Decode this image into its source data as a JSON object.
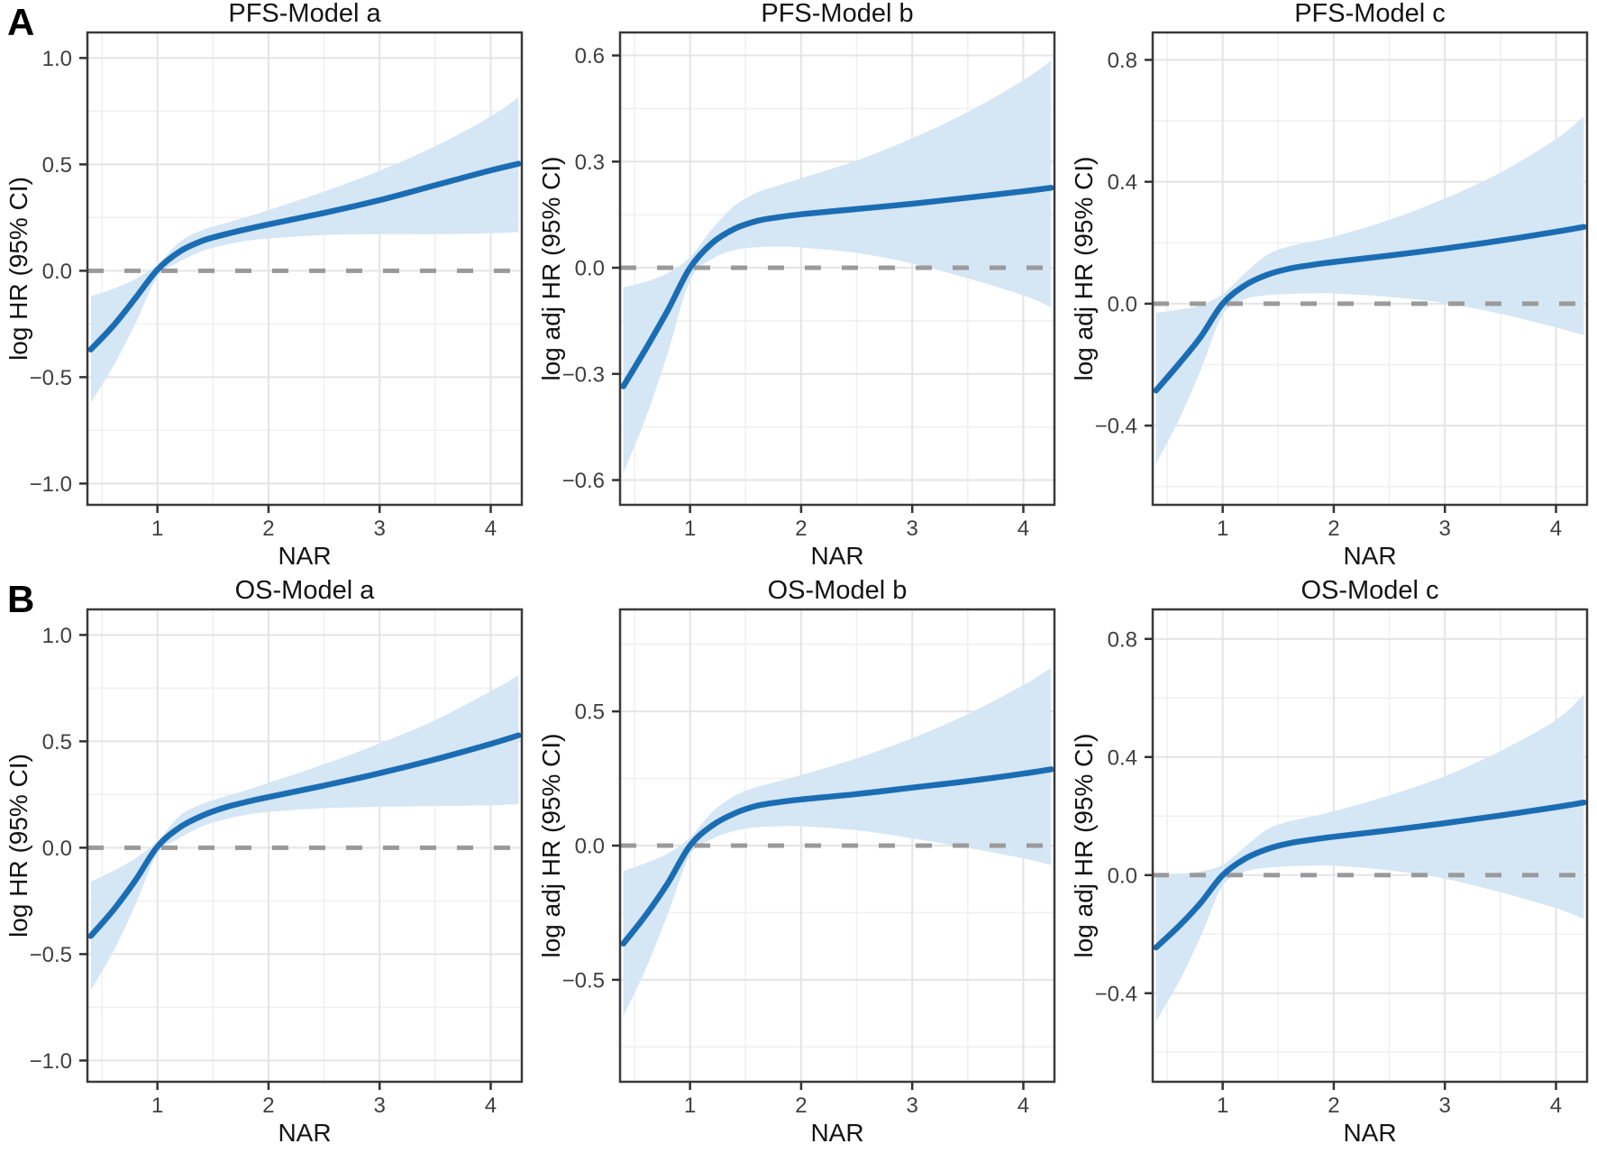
{
  "figure": {
    "row_labels": [
      "A",
      "B"
    ],
    "xlabel": "NAR",
    "colors": {
      "line": "#1b6db3",
      "ribbon": "#d5e6f4",
      "dashed": "#9a9a9a",
      "grid_major": "#e4e4e4",
      "grid_minor": "#f0f0f0",
      "border": "#3a3a3a",
      "tick_mark": "#333333",
      "title_text": "#141414",
      "tick_text": "#404040"
    }
  },
  "chart_data": [
    {
      "id": "pfs-model-a",
      "row": "A",
      "type": "line",
      "title": "PFS-Model a",
      "xlabel": "NAR",
      "ylabel": "log HR (95% CI)",
      "xlim": [
        0.37,
        4.28
      ],
      "ylim": [
        -1.1,
        1.12
      ],
      "xticks": [
        1,
        2,
        3,
        4
      ],
      "xtick_labels": [
        "1",
        "2",
        "3",
        "4"
      ],
      "yticks": [
        {
          "value": 1.0,
          "label": "1.0"
        },
        {
          "value": 0.5,
          "label": "0.5"
        },
        {
          "value": 0.0,
          "label": "0.0"
        },
        {
          "value": -0.5,
          "label": "−0.5"
        },
        {
          "value": -1.0,
          "label": "−1.0"
        }
      ],
      "reference_y": 0,
      "x": [
        0.4,
        0.6,
        0.8,
        1.0,
        1.2,
        1.4,
        1.6,
        1.8,
        2.0,
        2.5,
        3.0,
        3.5,
        4.0,
        4.25
      ],
      "y": [
        -0.37,
        -0.26,
        -0.13,
        0.005,
        0.09,
        0.14,
        0.17,
        0.195,
        0.218,
        0.272,
        0.332,
        0.402,
        0.472,
        0.503
      ],
      "ci_upper": [
        -0.12,
        -0.085,
        -0.04,
        0.03,
        0.135,
        0.19,
        0.222,
        0.252,
        0.285,
        0.372,
        0.47,
        0.585,
        0.725,
        0.815
      ],
      "ci_lower": [
        -0.62,
        -0.45,
        -0.25,
        -0.03,
        0.042,
        0.092,
        0.12,
        0.14,
        0.152,
        0.168,
        0.172,
        0.172,
        0.176,
        0.182
      ]
    },
    {
      "id": "pfs-model-b",
      "row": "A",
      "type": "line",
      "title": "PFS-Model b",
      "xlabel": "NAR",
      "ylabel": "log adj HR (95% CI)",
      "xlim": [
        0.37,
        4.28
      ],
      "ylim": [
        -0.67,
        0.665
      ],
      "xticks": [
        1,
        2,
        3,
        4
      ],
      "xtick_labels": [
        "1",
        "2",
        "3",
        "4"
      ],
      "yticks": [
        {
          "value": 0.6,
          "label": "0.6"
        },
        {
          "value": 0.3,
          "label": "0.3"
        },
        {
          "value": 0.0,
          "label": "0.0"
        },
        {
          "value": -0.3,
          "label": "−0.3"
        },
        {
          "value": -0.6,
          "label": "−0.6"
        }
      ],
      "reference_y": 0,
      "x": [
        0.4,
        0.6,
        0.8,
        1.0,
        1.2,
        1.4,
        1.6,
        1.8,
        2.0,
        2.5,
        3.0,
        3.5,
        4.0,
        4.25
      ],
      "y": [
        -0.335,
        -0.23,
        -0.12,
        0.0,
        0.07,
        0.11,
        0.132,
        0.143,
        0.151,
        0.166,
        0.181,
        0.198,
        0.216,
        0.226
      ],
      "ci_upper": [
        -0.055,
        -0.04,
        -0.015,
        0.03,
        0.11,
        0.175,
        0.212,
        0.233,
        0.253,
        0.303,
        0.366,
        0.44,
        0.53,
        0.585
      ],
      "ci_lower": [
        -0.58,
        -0.425,
        -0.24,
        -0.035,
        0.025,
        0.05,
        0.058,
        0.06,
        0.057,
        0.042,
        0.012,
        -0.03,
        -0.078,
        -0.112
      ]
    },
    {
      "id": "pfs-model-c",
      "row": "A",
      "type": "line",
      "title": "PFS-Model c",
      "xlabel": "NAR",
      "ylabel": "log adj HR (95% CI)",
      "xlim": [
        0.37,
        4.28
      ],
      "ylim": [
        -0.66,
        0.89
      ],
      "xticks": [
        1,
        2,
        3,
        4
      ],
      "xtick_labels": [
        "1",
        "2",
        "3",
        "4"
      ],
      "yticks": [
        {
          "value": 0.8,
          "label": "0.8"
        },
        {
          "value": 0.4,
          "label": "0.4"
        },
        {
          "value": 0.0,
          "label": "0.0"
        },
        {
          "value": -0.4,
          "label": "−0.4"
        }
      ],
      "reference_y": 0,
      "x": [
        0.4,
        0.6,
        0.8,
        1.0,
        1.2,
        1.4,
        1.6,
        1.8,
        2.0,
        2.5,
        3.0,
        3.5,
        4.0,
        4.25
      ],
      "y": [
        -0.285,
        -0.2,
        -0.11,
        0.0,
        0.06,
        0.095,
        0.115,
        0.127,
        0.137,
        0.158,
        0.181,
        0.207,
        0.236,
        0.252
      ],
      "ci_upper": [
        -0.03,
        -0.02,
        -0.005,
        0.032,
        0.1,
        0.16,
        0.188,
        0.204,
        0.22,
        0.275,
        0.345,
        0.43,
        0.54,
        0.615
      ],
      "ci_lower": [
        -0.525,
        -0.385,
        -0.22,
        -0.035,
        0.015,
        0.028,
        0.032,
        0.034,
        0.034,
        0.022,
        0.002,
        -0.033,
        -0.078,
        -0.103
      ]
    },
    {
      "id": "os-model-a",
      "row": "B",
      "type": "line",
      "title": "OS-Model a",
      "xlabel": "NAR",
      "ylabel": "log HR (95% CI)",
      "xlim": [
        0.37,
        4.28
      ],
      "ylim": [
        -1.1,
        1.12
      ],
      "xticks": [
        1,
        2,
        3,
        4
      ],
      "xtick_labels": [
        "1",
        "2",
        "3",
        "4"
      ],
      "yticks": [
        {
          "value": 1.0,
          "label": "1.0"
        },
        {
          "value": 0.5,
          "label": "0.5"
        },
        {
          "value": 0.0,
          "label": "0.0"
        },
        {
          "value": -0.5,
          "label": "−0.5"
        },
        {
          "value": -1.0,
          "label": "−1.0"
        }
      ],
      "reference_y": 0,
      "x": [
        0.4,
        0.6,
        0.8,
        1.0,
        1.2,
        1.4,
        1.6,
        1.8,
        2.0,
        2.5,
        3.0,
        3.5,
        4.0,
        4.25
      ],
      "y": [
        -0.415,
        -0.295,
        -0.155,
        0.005,
        0.095,
        0.15,
        0.188,
        0.215,
        0.238,
        0.292,
        0.35,
        0.415,
        0.488,
        0.528
      ],
      "ci_upper": [
        -0.16,
        -0.11,
        -0.05,
        0.03,
        0.15,
        0.205,
        0.24,
        0.27,
        0.305,
        0.392,
        0.49,
        0.6,
        0.735,
        0.81
      ],
      "ci_lower": [
        -0.67,
        -0.49,
        -0.27,
        -0.03,
        0.045,
        0.1,
        0.132,
        0.155,
        0.168,
        0.186,
        0.192,
        0.196,
        0.2,
        0.205
      ]
    },
    {
      "id": "os-model-b",
      "row": "B",
      "type": "line",
      "title": "OS-Model b",
      "xlabel": "NAR",
      "ylabel": "log adj HR (95% CI)",
      "xlim": [
        0.37,
        4.28
      ],
      "ylim": [
        -0.88,
        0.88
      ],
      "xticks": [
        1,
        2,
        3,
        4
      ],
      "xtick_labels": [
        "1",
        "2",
        "3",
        "4"
      ],
      "yticks": [
        {
          "value": 0.5,
          "label": "0.5"
        },
        {
          "value": 0.0,
          "label": "0.0"
        },
        {
          "value": -0.5,
          "label": "−0.5"
        }
      ],
      "reference_y": 0,
      "x": [
        0.4,
        0.6,
        0.8,
        1.0,
        1.2,
        1.4,
        1.6,
        1.8,
        2.0,
        2.5,
        3.0,
        3.5,
        4.0,
        4.25
      ],
      "y": [
        -0.365,
        -0.26,
        -0.14,
        0.0,
        0.075,
        0.12,
        0.148,
        0.162,
        0.172,
        0.192,
        0.216,
        0.24,
        0.268,
        0.284
      ],
      "ci_upper": [
        -0.095,
        -0.065,
        -0.03,
        0.03,
        0.125,
        0.185,
        0.218,
        0.24,
        0.263,
        0.325,
        0.4,
        0.49,
        0.598,
        0.662
      ],
      "ci_lower": [
        -0.635,
        -0.46,
        -0.255,
        -0.035,
        0.025,
        0.055,
        0.068,
        0.072,
        0.072,
        0.057,
        0.027,
        -0.008,
        -0.048,
        -0.072
      ]
    },
    {
      "id": "os-model-c",
      "row": "B",
      "type": "line",
      "title": "OS-Model c",
      "xlabel": "NAR",
      "ylabel": "log adj HR (95% CI)",
      "xlim": [
        0.37,
        4.28
      ],
      "ylim": [
        -0.7,
        0.9
      ],
      "xticks": [
        1,
        2,
        3,
        4
      ],
      "xtick_labels": [
        "1",
        "2",
        "3",
        "4"
      ],
      "yticks": [
        {
          "value": 0.8,
          "label": "0.8"
        },
        {
          "value": 0.4,
          "label": "0.4"
        },
        {
          "value": 0.0,
          "label": "0.0"
        },
        {
          "value": -0.4,
          "label": "−0.4"
        }
      ],
      "reference_y": 0,
      "x": [
        0.4,
        0.6,
        0.8,
        1.0,
        1.2,
        1.4,
        1.6,
        1.8,
        2.0,
        2.5,
        3.0,
        3.5,
        4.0,
        4.25
      ],
      "y": [
        -0.245,
        -0.175,
        -0.095,
        0.0,
        0.055,
        0.088,
        0.108,
        0.12,
        0.13,
        0.152,
        0.176,
        0.202,
        0.23,
        0.246
      ],
      "ci_upper": [
        0.005,
        0.005,
        0.012,
        0.035,
        0.095,
        0.155,
        0.182,
        0.198,
        0.216,
        0.27,
        0.335,
        0.42,
        0.525,
        0.612
      ],
      "ci_lower": [
        -0.495,
        -0.365,
        -0.21,
        -0.035,
        0.012,
        0.025,
        0.03,
        0.032,
        0.032,
        0.016,
        -0.012,
        -0.058,
        -0.112,
        -0.148
      ]
    }
  ]
}
